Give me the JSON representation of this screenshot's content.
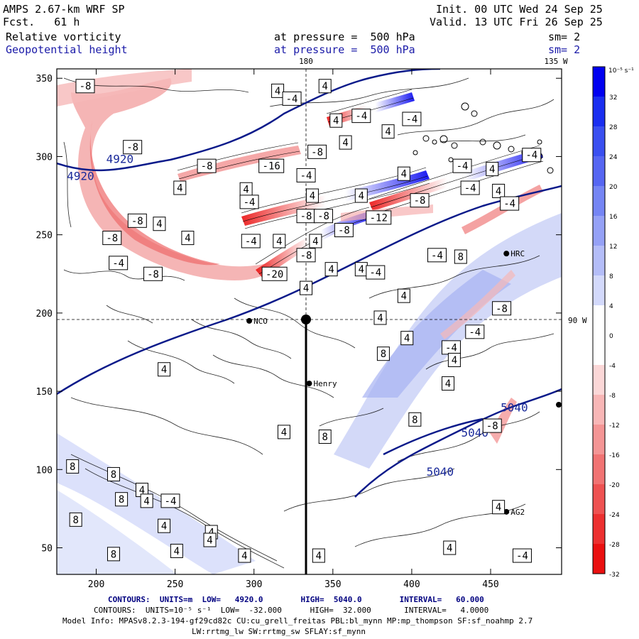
{
  "header": {
    "model": "AMPS 2.67-km WRF SP",
    "forecast": "Fcst.   61 h",
    "field1": "Relative vorticity",
    "field2": "Geopotential height",
    "pressure1": "at pressure =  500 hPa",
    "pressure2": "at pressure =  500 hPa",
    "init": "Init. 00 UTC Wed 24 Sep 25",
    "valid": "Valid. 13 UTC Fri 26 Sep 25",
    "sm1": "sm= 2",
    "sm2": "sm= 2"
  },
  "map": {
    "x_ticks": [
      200,
      250,
      300,
      350,
      400,
      450
    ],
    "y_ticks": [
      50,
      100,
      150,
      200,
      250,
      300,
      350
    ],
    "x_range": [
      175,
      495
    ],
    "y_range": [
      33,
      356
    ],
    "top_labels": [
      "180",
      "135 W"
    ],
    "right_label": "90 W",
    "stations": [
      {
        "name": "NCO",
        "x": 297,
        "y": 195
      },
      {
        "name": "Henry",
        "x": 335,
        "y": 155
      },
      {
        "name": "HRC",
        "x": 460,
        "y": 238
      },
      {
        "name": "AG2",
        "x": 460,
        "y": 73
      }
    ],
    "height_labels": [
      {
        "text": "4920",
        "x": 215,
        "y": 296
      },
      {
        "text": "4920",
        "x": 190,
        "y": 285
      },
      {
        "text": "5040",
        "x": 465,
        "y": 137
      },
      {
        "text": "5040",
        "x": 440,
        "y": 121
      },
      {
        "text": "5040",
        "x": 418,
        "y": 96
      }
    ],
    "contour_boxes": [
      {
        "text": "-8",
        "x": 193,
        "y": 345
      },
      {
        "text": "4",
        "x": 315,
        "y": 342
      },
      {
        "text": "-4",
        "x": 324,
        "y": 337
      },
      {
        "text": "4",
        "x": 345,
        "y": 345
      },
      {
        "text": "4",
        "x": 352,
        "y": 323
      },
      {
        "text": "-4",
        "x": 368,
        "y": 326
      },
      {
        "text": "4",
        "x": 385,
        "y": 316
      },
      {
        "text": "-4",
        "x": 400,
        "y": 324
      },
      {
        "text": "-8",
        "x": 223,
        "y": 306
      },
      {
        "text": "-8",
        "x": 270,
        "y": 294
      },
      {
        "text": "-16",
        "x": 311,
        "y": 294
      },
      {
        "text": "-8",
        "x": 340,
        "y": 303
      },
      {
        "text": "4",
        "x": 358,
        "y": 309
      },
      {
        "text": "-4",
        "x": 333,
        "y": 288
      },
      {
        "text": "4",
        "x": 395,
        "y": 289
      },
      {
        "text": "-4",
        "x": 432,
        "y": 294
      },
      {
        "text": "4",
        "x": 451,
        "y": 292
      },
      {
        "text": "-4",
        "x": 476,
        "y": 301
      },
      {
        "text": "4",
        "x": 253,
        "y": 280
      },
      {
        "text": "4",
        "x": 295,
        "y": 279
      },
      {
        "text": "-4",
        "x": 297,
        "y": 271
      },
      {
        "text": "4",
        "x": 337,
        "y": 275
      },
      {
        "text": "4",
        "x": 368,
        "y": 275
      },
      {
        "text": "-8",
        "x": 405,
        "y": 272
      },
      {
        "text": "-4",
        "x": 437,
        "y": 280
      },
      {
        "text": "4",
        "x": 455,
        "y": 278
      },
      {
        "text": "-4",
        "x": 462,
        "y": 270
      },
      {
        "text": "-8",
        "x": 226,
        "y": 259
      },
      {
        "text": "4",
        "x": 240,
        "y": 257
      },
      {
        "text": "-8",
        "x": 333,
        "y": 262
      },
      {
        "text": "-8",
        "x": 344,
        "y": 262
      },
      {
        "text": "-12",
        "x": 379,
        "y": 261
      },
      {
        "text": "-8",
        "x": 357,
        "y": 253
      },
      {
        "text": "4",
        "x": 258,
        "y": 248
      },
      {
        "text": "-8",
        "x": 210,
        "y": 248
      },
      {
        "text": "4",
        "x": 316,
        "y": 246
      },
      {
        "text": "-4",
        "x": 298,
        "y": 246
      },
      {
        "text": "4",
        "x": 339,
        "y": 246
      },
      {
        "text": "-8",
        "x": 333,
        "y": 237
      },
      {
        "text": "-4",
        "x": 214,
        "y": 232
      },
      {
        "text": "-8",
        "x": 236,
        "y": 225
      },
      {
        "text": "-20",
        "x": 313,
        "y": 225
      },
      {
        "text": "4",
        "x": 349,
        "y": 228
      },
      {
        "text": "4",
        "x": 368,
        "y": 228
      },
      {
        "text": "-4",
        "x": 377,
        "y": 226
      },
      {
        "text": "-4",
        "x": 416,
        "y": 237
      },
      {
        "text": "8",
        "x": 431,
        "y": 236
      },
      {
        "text": "4",
        "x": 333,
        "y": 216
      },
      {
        "text": "4",
        "x": 395,
        "y": 211
      },
      {
        "text": "-8",
        "x": 457,
        "y": 203
      },
      {
        "text": "4",
        "x": 380,
        "y": 197
      },
      {
        "text": "4",
        "x": 397,
        "y": 184
      },
      {
        "text": "-4",
        "x": 440,
        "y": 188
      },
      {
        "text": "-4",
        "x": 425,
        "y": 178
      },
      {
        "text": "8",
        "x": 382,
        "y": 174
      },
      {
        "text": "4",
        "x": 427,
        "y": 170
      },
      {
        "text": "4",
        "x": 243,
        "y": 164
      },
      {
        "text": "4",
        "x": 423,
        "y": 155
      },
      {
        "text": "8",
        "x": 402,
        "y": 132
      },
      {
        "text": "-8",
        "x": 451,
        "y": 128
      },
      {
        "text": "4",
        "x": 319,
        "y": 124
      },
      {
        "text": "8",
        "x": 345,
        "y": 121
      },
      {
        "text": "8",
        "x": 185,
        "y": 102
      },
      {
        "text": "8",
        "x": 211,
        "y": 97
      },
      {
        "text": "4",
        "x": 229,
        "y": 87
      },
      {
        "text": "8",
        "x": 216,
        "y": 81
      },
      {
        "text": "4",
        "x": 232,
        "y": 80
      },
      {
        "text": "-4",
        "x": 247,
        "y": 80
      },
      {
        "text": "8",
        "x": 187,
        "y": 68
      },
      {
        "text": "4",
        "x": 243,
        "y": 64
      },
      {
        "text": "4",
        "x": 273,
        "y": 60
      },
      {
        "text": "4",
        "x": 272,
        "y": 55
      },
      {
        "text": "8",
        "x": 211,
        "y": 46
      },
      {
        "text": "4",
        "x": 251,
        "y": 48
      },
      {
        "text": "4",
        "x": 294,
        "y": 45
      },
      {
        "text": "4",
        "x": 341,
        "y": 45
      },
      {
        "text": "4",
        "x": 455,
        "y": 76
      },
      {
        "text": "4",
        "x": 424,
        "y": 50
      },
      {
        "text": "-4",
        "x": 470,
        "y": 45
      }
    ]
  },
  "colorbar": {
    "unit_label": "10⁻⁵ s⁻¹",
    "labels": [
      32,
      28,
      24,
      20,
      16,
      12,
      8,
      4,
      0,
      -4,
      -8,
      -12,
      -16,
      -20,
      -24,
      -28,
      -32
    ],
    "colors": [
      "#0000f0",
      "#1a2ef0",
      "#3a4ff0",
      "#5666f2",
      "#7585f4",
      "#95a1f6",
      "#b4bdf8",
      "#d3d9fb",
      "#ffffff",
      "#ffffff",
      "#fbd7d7",
      "#f8b6b6",
      "#f49595",
      "#f17373",
      "#ee5252",
      "#ec3030",
      "#ea1010"
    ]
  },
  "footer": {
    "line1_label": "CONTOURS:  UNITS=m  LOW=   4920.0        HIGH=  5040.0        INTERVAL=   60.000",
    "line2_label": "CONTOURS:  UNITS=10⁻⁵ s⁻¹  LOW=  -32.000      HIGH=  32.000       INTERVAL=   4.0000",
    "line3": "Model Info: MPASv8.2.3-194-gf29cd82c CU:cu_grell_freitas PBL:bl_mynn MP:mp_thompson SF:sf_noahmp 2.7",
    "line4": "LW:rrtmg_lw SW:rrtmg_sw SFLAY:sf_mynn"
  }
}
